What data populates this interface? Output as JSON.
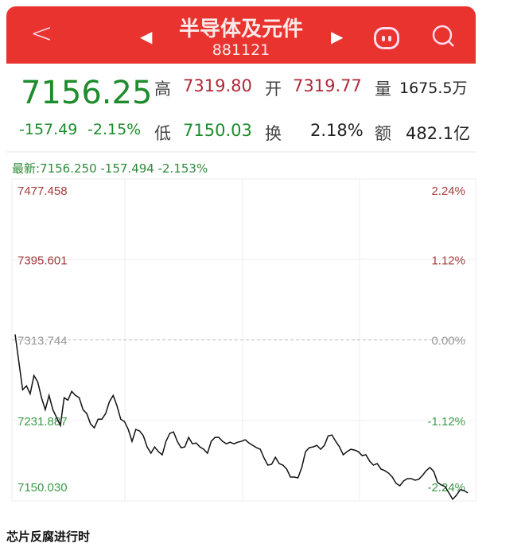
{
  "header": {
    "title": "半导体及元件",
    "code": "881121",
    "back_icon": "chevron-left-icon",
    "prev_icon": "triangle-left-icon",
    "next_icon": "triangle-right-icon",
    "robot_icon": "robot-icon",
    "search_icon": "search-icon",
    "color": "#e8332f"
  },
  "quote": {
    "price": "7156.25",
    "change": "-157.49",
    "change_pct": "-2.15%",
    "high_label": "高",
    "high": "7319.80",
    "open_label": "开",
    "open": "7319.77",
    "volume_label": "量",
    "volume": "1675.5万",
    "low_label": "低",
    "low": "7150.03",
    "turnover_label": "换",
    "turnover": "2.18%",
    "amount_label": "额",
    "amount": "482.1亿",
    "up_color": "#b0293a",
    "down_color": "#1e8b2c"
  },
  "latest_line": "最新:7156.250 -157.494 -2.153%",
  "chart_data": {
    "type": "line",
    "title": "",
    "xlabel": "",
    "ylabel": "",
    "ylim": [
      7150.03,
      7477.458
    ],
    "reference": 7313.744,
    "y_tick_labels": [
      "7477.458",
      "7395.601",
      "7313.744",
      "7231.887",
      "7150.030"
    ],
    "y_tick_values": [
      7477.458,
      7395.601,
      7313.744,
      7231.887,
      7150.03
    ],
    "pct_tick_labels": [
      "2.24%",
      "1.12%",
      "0.00%",
      "-1.12%",
      "-2.24%"
    ],
    "grid": true,
    "series": [
      {
        "values": [
          7319.4,
          7291.2,
          7263.0,
          7267.0,
          7258.9,
          7277.5,
          7271.0,
          7254.9,
          7242.8,
          7257.3,
          7242.8,
          7234.8,
          7226.7,
          7254.9,
          7252.5,
          7261.4,
          7257.3,
          7254.9,
          7242.8,
          7238.8,
          7228.3,
          7224.3,
          7233.1,
          7233.1,
          7238.8,
          7250.9,
          7257.3,
          7246.8,
          7233.1,
          7230.7,
          7222.7,
          7210.6,
          7222.7,
          7221.1,
          7216.2,
          7204.9,
          7198.5,
          7204.9,
          7200.1,
          7196.9,
          7210.6,
          7218.6,
          7220.2,
          7210.6,
          7204.1,
          7204.9,
          7214.6,
          7208.1,
          7208.9,
          7204.9,
          7202.5,
          7198.5,
          7210.6,
          7214.6,
          7214.6,
          7210.6,
          7208.1,
          7209.7,
          7208.1,
          7209.7,
          7210.6,
          7212.2,
          7208.9,
          7206.5,
          7204.1,
          7202.5,
          7193.6,
          7186.4,
          7187.2,
          7194.4,
          7188.0,
          7186.4,
          7182.4,
          7174.3,
          7174.3,
          7173.5,
          7184.0,
          7200.1,
          7204.1,
          7204.9,
          7206.5,
          7202.5,
          7206.5,
          7216.2,
          7217.0,
          7210.6,
          7204.9,
          7196.9,
          7200.1,
          7202.5,
          7201.7,
          7200.1,
          7196.1,
          7196.9,
          7190.4,
          7186.4,
          7188.0,
          7182.4,
          7180.8,
          7178.3,
          7174.3,
          7167.9,
          7165.4,
          7170.3,
          7172.7,
          7172.7,
          7171.1,
          7171.9,
          7175.9,
          7180.8,
          7184.0,
          7179.9,
          7168.7,
          7166.2,
          7164.6,
          7158.2,
          7151.7,
          7155.7,
          7161.4,
          7160.6,
          7158.2
        ]
      }
    ]
  },
  "caption": "芯片反腐进行时"
}
